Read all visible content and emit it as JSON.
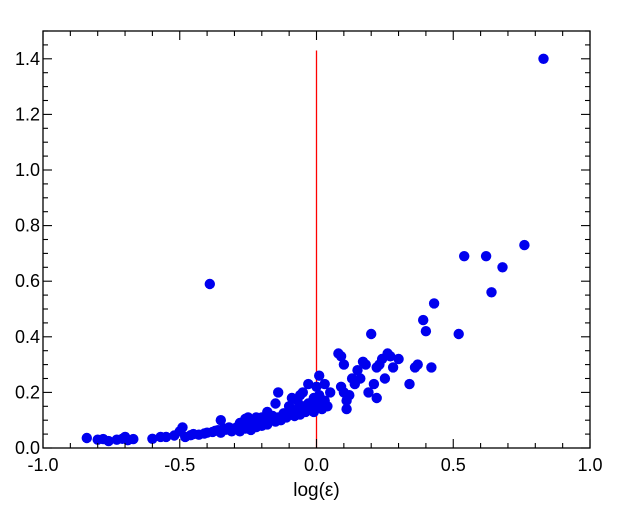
{
  "chart_data": {
    "type": "scatter",
    "title": "",
    "xlabel": "log(ε)",
    "ylabel": "",
    "xlim": [
      -1.0,
      1.0
    ],
    "ylim": [
      0.0,
      1.5
    ],
    "x_ticks": [
      -1.0,
      -0.5,
      0.0,
      0.5,
      1.0
    ],
    "x_tick_labels": [
      "-1.0",
      "-0.5",
      "0.0",
      "0.5",
      "1.0"
    ],
    "y_ticks": [
      0.0,
      0.2,
      0.4,
      0.6,
      0.8,
      1.0,
      1.2,
      1.4
    ],
    "y_tick_labels": [
      "0.0",
      "0.2",
      "0.4",
      "0.6",
      "0.8",
      "1.0",
      "1.2",
      "1.4"
    ],
    "grid": false,
    "legend": "none",
    "colors": {
      "points": "#0000ee",
      "reference_line": "#ff0000",
      "axes": "#000000"
    },
    "reference_line": {
      "orientation": "vertical",
      "x": 0.0,
      "y_range": [
        0.0,
        1.43
      ]
    },
    "points": [
      [
        -0.84,
        0.036
      ],
      [
        -0.8,
        0.03
      ],
      [
        -0.78,
        0.032
      ],
      [
        -0.76,
        0.025
      ],
      [
        -0.73,
        0.03
      ],
      [
        -0.71,
        0.033
      ],
      [
        -0.7,
        0.04
      ],
      [
        -0.69,
        0.028
      ],
      [
        -0.67,
        0.032
      ],
      [
        -0.6,
        0.033
      ],
      [
        -0.57,
        0.04
      ],
      [
        -0.55,
        0.04
      ],
      [
        -0.52,
        0.045
      ],
      [
        -0.5,
        0.06
      ],
      [
        -0.49,
        0.074
      ],
      [
        -0.48,
        0.04
      ],
      [
        -0.46,
        0.046
      ],
      [
        -0.45,
        0.05
      ],
      [
        -0.43,
        0.048
      ],
      [
        -0.41,
        0.052
      ],
      [
        -0.4,
        0.055
      ],
      [
        -0.39,
        0.59
      ],
      [
        -0.38,
        0.058
      ],
      [
        -0.37,
        0.062
      ],
      [
        -0.36,
        0.064
      ],
      [
        -0.35,
        0.1
      ],
      [
        -0.35,
        0.055
      ],
      [
        -0.34,
        0.07
      ],
      [
        -0.33,
        0.066
      ],
      [
        -0.32,
        0.074
      ],
      [
        -0.31,
        0.06
      ],
      [
        -0.3,
        0.07
      ],
      [
        -0.29,
        0.075
      ],
      [
        -0.28,
        0.06
      ],
      [
        -0.28,
        0.09
      ],
      [
        -0.27,
        0.08
      ],
      [
        -0.26,
        0.105
      ],
      [
        -0.26,
        0.07
      ],
      [
        -0.25,
        0.085
      ],
      [
        -0.25,
        0.11
      ],
      [
        -0.24,
        0.09
      ],
      [
        -0.24,
        0.065
      ],
      [
        -0.23,
        0.1
      ],
      [
        -0.23,
        0.08
      ],
      [
        -0.22,
        0.11
      ],
      [
        -0.22,
        0.075
      ],
      [
        -0.21,
        0.09
      ],
      [
        -0.2,
        0.11
      ],
      [
        -0.2,
        0.08
      ],
      [
        -0.19,
        0.095
      ],
      [
        -0.18,
        0.13
      ],
      [
        -0.18,
        0.085
      ],
      [
        -0.17,
        0.1
      ],
      [
        -0.16,
        0.115
      ],
      [
        -0.15,
        0.16
      ],
      [
        -0.15,
        0.095
      ],
      [
        -0.14,
        0.2
      ],
      [
        -0.14,
        0.11
      ],
      [
        -0.13,
        0.1
      ],
      [
        -0.12,
        0.125
      ],
      [
        -0.11,
        0.11
      ],
      [
        -0.1,
        0.15
      ],
      [
        -0.1,
        0.12
      ],
      [
        -0.09,
        0.18
      ],
      [
        -0.09,
        0.13
      ],
      [
        -0.08,
        0.115
      ],
      [
        -0.07,
        0.17
      ],
      [
        -0.07,
        0.14
      ],
      [
        -0.06,
        0.19
      ],
      [
        -0.06,
        0.12
      ],
      [
        -0.05,
        0.15
      ],
      [
        -0.05,
        0.2
      ],
      [
        -0.04,
        0.13
      ],
      [
        -0.03,
        0.23
      ],
      [
        -0.03,
        0.16
      ],
      [
        -0.02,
        0.14
      ],
      [
        -0.01,
        0.18
      ],
      [
        -0.01,
        0.13
      ],
      [
        0.0,
        0.16
      ],
      [
        0.0,
        0.22
      ],
      [
        0.01,
        0.26
      ],
      [
        0.01,
        0.19
      ],
      [
        0.02,
        0.14
      ],
      [
        0.03,
        0.23
      ],
      [
        0.03,
        0.17
      ],
      [
        0.04,
        0.15
      ],
      [
        0.05,
        0.2
      ],
      [
        0.08,
        0.34
      ],
      [
        0.09,
        0.33
      ],
      [
        0.09,
        0.22
      ],
      [
        0.1,
        0.2
      ],
      [
        0.1,
        0.3
      ],
      [
        0.11,
        0.17
      ],
      [
        0.11,
        0.14
      ],
      [
        0.12,
        0.19
      ],
      [
        0.13,
        0.25
      ],
      [
        0.14,
        0.23
      ],
      [
        0.15,
        0.28
      ],
      [
        0.16,
        0.25
      ],
      [
        0.17,
        0.31
      ],
      [
        0.18,
        0.3
      ],
      [
        0.19,
        0.2
      ],
      [
        0.2,
        0.41
      ],
      [
        0.21,
        0.23
      ],
      [
        0.22,
        0.29
      ],
      [
        0.22,
        0.18
      ],
      [
        0.23,
        0.3
      ],
      [
        0.24,
        0.32
      ],
      [
        0.25,
        0.25
      ],
      [
        0.26,
        0.34
      ],
      [
        0.27,
        0.33
      ],
      [
        0.28,
        0.29
      ],
      [
        0.3,
        0.32
      ],
      [
        0.34,
        0.23
      ],
      [
        0.36,
        0.29
      ],
      [
        0.37,
        0.3
      ],
      [
        0.39,
        0.46
      ],
      [
        0.4,
        0.42
      ],
      [
        0.42,
        0.29
      ],
      [
        0.43,
        0.52
      ],
      [
        0.52,
        0.41
      ],
      [
        0.54,
        0.69
      ],
      [
        0.62,
        0.69
      ],
      [
        0.64,
        0.56
      ],
      [
        0.68,
        0.65
      ],
      [
        0.76,
        0.73
      ],
      [
        0.83,
        1.4
      ]
    ]
  }
}
